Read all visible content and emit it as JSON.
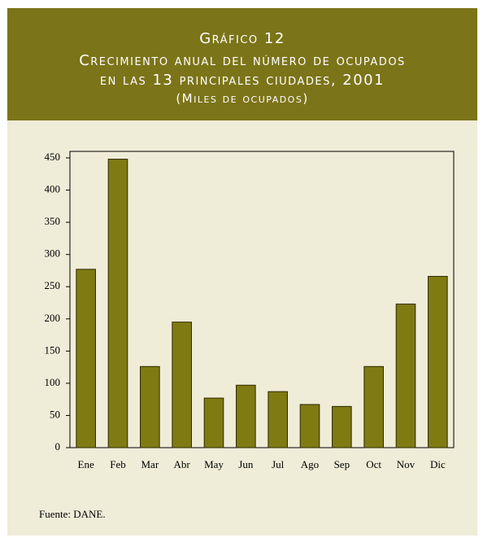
{
  "chart_data": {
    "type": "bar",
    "title": "Gráfico 12",
    "subtitle": [
      "Crecimiento anual del número de ocupados",
      "en las 13 principales ciudades, 2001"
    ],
    "unit_note": "(Miles de ocupados)",
    "categories": [
      "Ene",
      "Feb",
      "Mar",
      "Abr",
      "May",
      "Jun",
      "Jul",
      "Ago",
      "Sep",
      "Oct",
      "Nov",
      "Dic"
    ],
    "values": [
      277,
      448,
      126,
      195,
      77,
      97,
      87,
      67,
      64,
      126,
      223,
      266
    ],
    "color": "#807a12",
    "ylim": [
      0,
      450
    ],
    "yticks": [
      0,
      50,
      100,
      150,
      200,
      250,
      300,
      350,
      400,
      450
    ],
    "source": "Fuente: DANE."
  }
}
